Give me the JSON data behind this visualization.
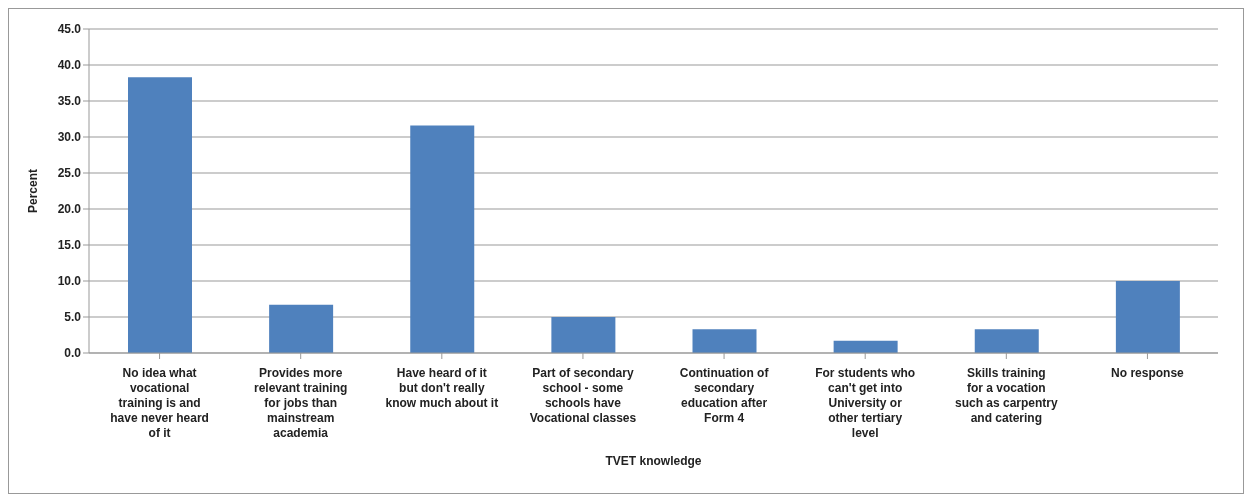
{
  "chart_data": {
    "type": "bar",
    "categories": [
      "No idea what vocational training is and have never heard of it",
      "Provides more relevant training for jobs than mainstream academia",
      "Have heard of it but don't really know much about it",
      "Part of secondary school - some schools have Vocational classes",
      "Continuation of secondary education after Form 4",
      "For students who can't get into University or other tertiary level",
      "Skills training for a vocation such as carpentry and catering",
      "No response"
    ],
    "values": [
      38.3,
      6.7,
      31.6,
      5.0,
      3.3,
      1.7,
      3.3,
      10.0
    ],
    "color": "#4f81bd",
    "xlabel": "TVET knowledge",
    "ylabel": "Percent",
    "ylim": [
      0,
      45
    ],
    "yticks": [
      {
        "value": 0,
        "label": "0.0"
      },
      {
        "value": 5,
        "label": "5.0"
      },
      {
        "value": 10,
        "label": "10.0"
      },
      {
        "value": 15,
        "label": "15.0"
      },
      {
        "value": 20,
        "label": "20.0"
      },
      {
        "value": 25,
        "label": "25.0"
      },
      {
        "value": 30,
        "label": "30.0"
      },
      {
        "value": 35,
        "label": "35.0"
      },
      {
        "value": 40,
        "label": "40.0"
      },
      {
        "value": 45,
        "label": "45.0"
      }
    ],
    "grid": "y",
    "legend": false
  }
}
